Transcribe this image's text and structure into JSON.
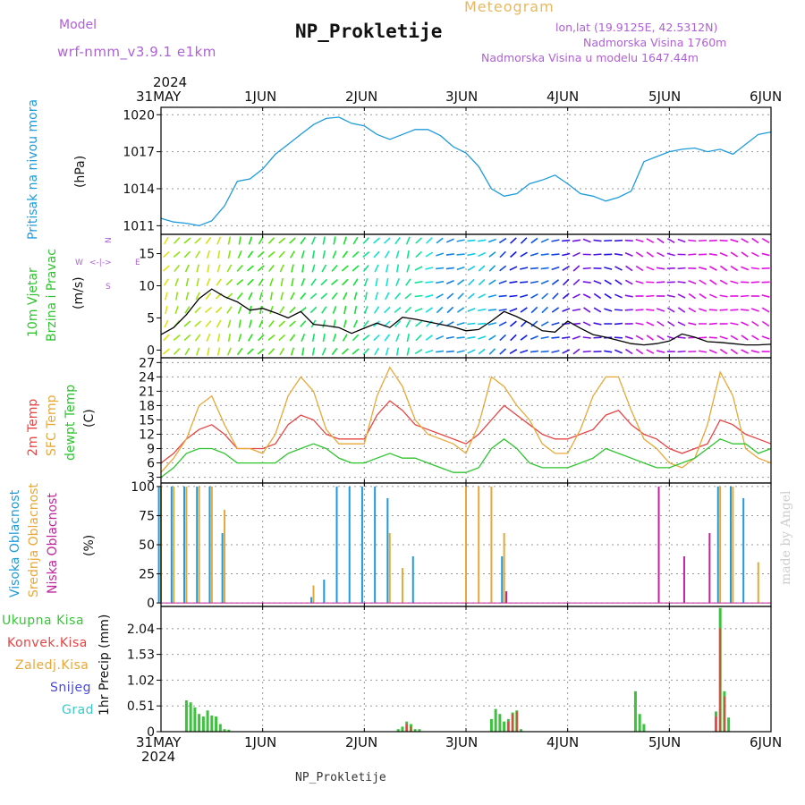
{
  "header": {
    "model_label": "Model",
    "model_name": "wrf-nmm_v3.9.1 e1km",
    "title": "NP_Prokletije",
    "meteogram_label": "Meteogram",
    "lonlat": "lon,lat (19.9125E, 42.5312N)",
    "elevation": "Nadmorska Visina 1760m",
    "model_elevation": "Nadmorska Visina u modelu 1647.44m",
    "footer": "NP_Prokletije",
    "watermark": "made by Angel"
  },
  "time_axis": {
    "year": "2024",
    "ticks": [
      "31MAY",
      "1JUN",
      "2JUN",
      "3JUN",
      "4JUN",
      "5JUN",
      "6JUN"
    ]
  },
  "panel_labels": {
    "pressure": {
      "name": "Pritisak na nivou mora",
      "unit": "(hPa)"
    },
    "wind": {
      "name1": "10m Vjetar",
      "name2": "Brzina i Pravac",
      "unit": "(m/s)",
      "dirs": "N",
      "w": "W",
      "e": "E",
      "s": "S",
      "arrow": "<-|->"
    },
    "temp": {
      "t2m": "2m Temp",
      "sfc": "SFC Temp",
      "dew": "dewpt Temp",
      "unit": "(C)"
    },
    "cloud": {
      "high": "Visoka Oblacnost",
      "mid": "Srednja Oblacnost",
      "low": "Niska Oblacnost",
      "unit": "(%)"
    },
    "precip": {
      "total": "Ukupna Kisa",
      "conv": "Konvek.Kisa",
      "frozen": "Zaledj.Kisa",
      "snow": "Snijeg",
      "hail": "Grad",
      "ylabel": "1hr Precip (mm)"
    }
  },
  "colors": {
    "pressure": "#1e9bdc",
    "t2m": "#e84343",
    "sfc": "#e8a838",
    "dew": "#2ec42e",
    "high_cloud": "#1e9bdc",
    "mid_cloud": "#e8a838",
    "low_cloud": "#c0249c",
    "total_precip": "#3cc23c",
    "conv_precip": "#e84343",
    "frozen_precip": "#e8a838",
    "snow": "#4848e0",
    "hail": "#3cc8c8",
    "model_label": "#b060d8",
    "meteogram_label": "#e8b860"
  },
  "chart_data": [
    {
      "type": "line",
      "panel": "pressure",
      "x_hours": [
        0,
        3,
        6,
        9,
        12,
        15,
        18,
        21,
        24,
        27,
        30,
        33,
        36,
        39,
        42,
        45,
        48,
        51,
        54,
        57,
        60,
        63,
        66,
        69,
        72,
        75,
        78,
        81,
        84,
        87,
        90,
        93,
        96,
        99,
        102,
        105,
        108,
        111,
        114,
        117,
        120,
        123,
        126,
        129,
        132,
        135,
        138,
        141,
        144
      ],
      "series": [
        {
          "values": [
            1011.6,
            1011.3,
            1011.2,
            1011.0,
            1011.4,
            1012.6,
            1014.6,
            1014.8,
            1015.6,
            1016.8,
            1017.6,
            1018.4,
            1019.2,
            1019.7,
            1019.8,
            1019.3,
            1019.1,
            1018.4,
            1018.0,
            1018.4,
            1018.8,
            1018.8,
            1018.3,
            1017.4,
            1016.9,
            1015.8,
            1014.0,
            1013.4,
            1013.6,
            1014.4,
            1014.7,
            1015.1,
            1014.4,
            1013.6,
            1013.4,
            1013.0,
            1013.3,
            1013.8,
            1016.2,
            1016.6,
            1017.0,
            1017.2,
            1017.3,
            1017.0,
            1017.2,
            1016.8,
            1017.6,
            1018.4,
            1018.6
          ]
        }
      ],
      "yticks": [
        1011,
        1014,
        1017,
        1020
      ],
      "ylim": [
        1010.3,
        1020.6
      ],
      "grid": true
    },
    {
      "type": "line",
      "panel": "wind",
      "x_hours": [
        0,
        3,
        6,
        9,
        12,
        15,
        18,
        21,
        24,
        27,
        30,
        33,
        36,
        39,
        42,
        45,
        48,
        51,
        54,
        57,
        60,
        63,
        66,
        69,
        72,
        75,
        78,
        81,
        84,
        87,
        90,
        93,
        96,
        99,
        102,
        105,
        108,
        111,
        114,
        117,
        120,
        123,
        126,
        129,
        132,
        135,
        138,
        141,
        144
      ],
      "series": [
        {
          "name": "speed",
          "values": [
            2.4,
            3.5,
            5.5,
            8.0,
            9.5,
            8.3,
            7.5,
            6.2,
            6.5,
            5.8,
            5.0,
            6.0,
            4.0,
            3.8,
            3.5,
            2.6,
            3.4,
            4.2,
            3.5,
            5.1,
            4.8,
            4.4,
            4.0,
            3.6,
            3.0,
            3.2,
            4.5,
            6.0,
            5.2,
            4.2,
            3.0,
            2.8,
            4.5,
            3.4,
            2.4,
            2.0,
            1.5,
            1.0,
            0.8,
            1.0,
            1.4,
            2.5,
            2.0,
            1.3,
            1.2,
            1.0,
            0.8,
            0.8,
            0.9
          ]
        }
      ],
      "yticks": [
        0,
        5,
        10,
        15
      ],
      "ylim": [
        -1.2,
        18
      ]
    },
    {
      "type": "line",
      "panel": "temperature",
      "x_hours": [
        0,
        3,
        6,
        9,
        12,
        15,
        18,
        21,
        24,
        27,
        30,
        33,
        36,
        39,
        42,
        45,
        48,
        51,
        54,
        57,
        60,
        63,
        66,
        69,
        72,
        75,
        78,
        81,
        84,
        87,
        90,
        93,
        96,
        99,
        102,
        105,
        108,
        111,
        114,
        117,
        120,
        123,
        126,
        129,
        132,
        135,
        138,
        141,
        144
      ],
      "series": [
        {
          "name": "2m Temp",
          "values": [
            6,
            8,
            11,
            13,
            14,
            12,
            9,
            9,
            9,
            10,
            14,
            16,
            15,
            12,
            11,
            11,
            11,
            16,
            19,
            17,
            14,
            13,
            12,
            11,
            10,
            12,
            15,
            18,
            16,
            14,
            12,
            11,
            11,
            12,
            13,
            16,
            17,
            14,
            12,
            11,
            9,
            8,
            9,
            10,
            15,
            14,
            12,
            11,
            10
          ]
        },
        {
          "name": "SFC Temp",
          "values": [
            4,
            7,
            11,
            18,
            20,
            14,
            9,
            9,
            8,
            12,
            20,
            24,
            21,
            13,
            10,
            10,
            10,
            20,
            26,
            22,
            15,
            12,
            11,
            10,
            8,
            14,
            24,
            22,
            18,
            15,
            10,
            8,
            8,
            13,
            20,
            24,
            24,
            17,
            11,
            9,
            6,
            5,
            7,
            14,
            25,
            20,
            9,
            7,
            6
          ]
        },
        {
          "name": "dewpt Temp",
          "values": [
            3,
            5,
            8,
            9,
            9,
            8,
            6,
            6,
            6,
            6,
            8,
            9,
            10,
            9,
            7,
            6,
            6,
            7,
            8,
            7,
            7,
            6,
            5,
            4,
            4,
            5,
            9,
            11,
            9,
            6,
            5,
            5,
            5,
            6,
            7,
            9,
            8,
            7,
            6,
            5,
            5,
            6,
            7,
            9,
            11,
            10,
            10,
            8,
            9
          ]
        }
      ],
      "yticks": [
        3,
        6,
        9,
        12,
        15,
        18,
        21,
        24,
        27
      ],
      "ylim": [
        1.8,
        28
      ]
    },
    {
      "type": "bar",
      "panel": "cloud",
      "x_hours": [
        0,
        3,
        6,
        9,
        12,
        15,
        18,
        21,
        24,
        27,
        30,
        33,
        36,
        39,
        42,
        45,
        48,
        51,
        54,
        57,
        60,
        63,
        66,
        69,
        72,
        75,
        78,
        81,
        84,
        87,
        90,
        93,
        96,
        99,
        102,
        105,
        108,
        111,
        114,
        117,
        120,
        123,
        126,
        129,
        132,
        135,
        138,
        141,
        144
      ],
      "series": [
        {
          "name": "Visoka Oblacnost",
          "values": [
            100,
            100,
            100,
            100,
            100,
            60,
            0,
            0,
            0,
            0,
            0,
            0,
            5,
            20,
            100,
            100,
            100,
            100,
            90,
            0,
            40,
            0,
            0,
            0,
            0,
            0,
            0,
            40,
            0,
            0,
            0,
            0,
            0,
            0,
            0,
            0,
            0,
            0,
            0,
            0,
            0,
            0,
            0,
            0,
            100,
            100,
            90,
            0,
            0
          ]
        },
        {
          "name": "Srednja Oblacnost",
          "values": [
            100,
            100,
            100,
            100,
            100,
            80,
            0,
            0,
            0,
            0,
            0,
            0,
            15,
            0,
            0,
            0,
            0,
            0,
            60,
            30,
            0,
            0,
            0,
            0,
            100,
            100,
            100,
            60,
            0,
            0,
            0,
            0,
            0,
            0,
            0,
            0,
            0,
            0,
            0,
            0,
            0,
            0,
            0,
            0,
            100,
            100,
            0,
            35,
            0
          ]
        },
        {
          "name": "Niska Oblacnost",
          "values": [
            0,
            0,
            0,
            0,
            0,
            0,
            0,
            0,
            0,
            0,
            0,
            0,
            0,
            0,
            0,
            0,
            0,
            0,
            0,
            0,
            0,
            0,
            0,
            0,
            0,
            0,
            0,
            10,
            0,
            0,
            0,
            0,
            0,
            0,
            0,
            0,
            0,
            0,
            0,
            100,
            0,
            40,
            0,
            60,
            0,
            0,
            0,
            0,
            0
          ]
        }
      ],
      "yticks": [
        0,
        25,
        50,
        75,
        100
      ],
      "ylim": [
        -3,
        103
      ]
    },
    {
      "type": "bar",
      "panel": "precipitation",
      "x_hours": [
        6,
        7,
        8,
        9,
        10,
        11,
        12,
        13,
        14,
        15,
        16,
        56,
        57,
        58,
        59,
        60,
        61,
        78,
        79,
        80,
        81,
        82,
        83,
        84,
        85,
        112,
        113,
        114,
        131,
        132,
        133,
        134
      ],
      "series": [
        {
          "name": "Ukupna Kisa",
          "values": [
            0.62,
            0.58,
            0.48,
            0.35,
            0.3,
            0.42,
            0.32,
            0.3,
            0.15,
            0.05,
            0.04,
            0.05,
            0.1,
            0.2,
            0.15,
            0.05,
            0.05,
            0.25,
            0.45,
            0.35,
            0.2,
            0.25,
            0.38,
            0.42,
            0.05,
            0.8,
            0.35,
            0.15,
            0.4,
            2.45,
            0.8,
            0.28
          ]
        },
        {
          "name": "Konvek.Kisa",
          "values": [
            0,
            0,
            0,
            0,
            0,
            0,
            0,
            0,
            0,
            0,
            0,
            0,
            0,
            0.15,
            0.1,
            0,
            0,
            0,
            0,
            0,
            0,
            0.2,
            0.35,
            0.4,
            0,
            0,
            0,
            0,
            0.3,
            2.05,
            0.7,
            0
          ]
        }
      ],
      "yticks": [
        0,
        0.51,
        1.02,
        1.53,
        2.04
      ],
      "ylim": [
        0,
        2.48
      ]
    }
  ]
}
